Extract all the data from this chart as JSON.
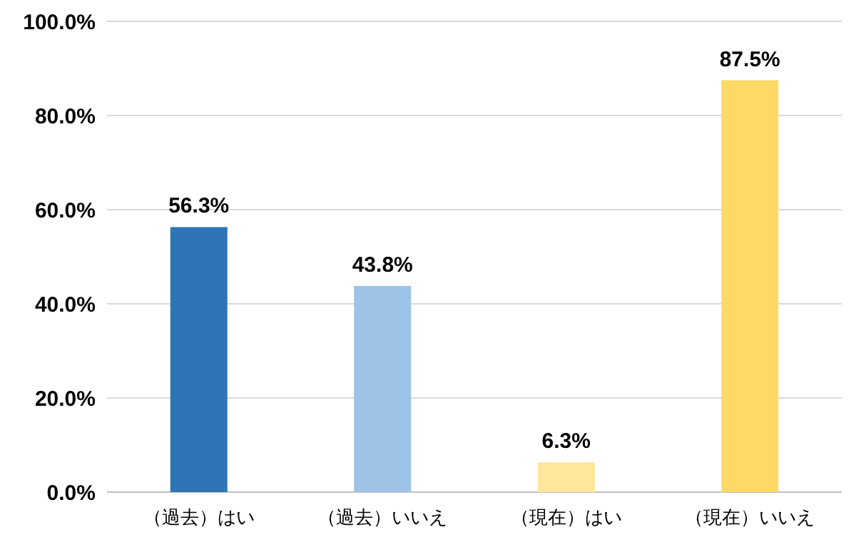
{
  "chart_data": {
    "type": "bar",
    "categories": [
      "（過去）はい",
      "（過去）いいえ",
      "（現在）はい",
      "（現在）いいえ"
    ],
    "values": [
      56.3,
      43.8,
      6.3,
      87.5
    ],
    "colors": [
      "#2e75b6",
      "#9dc3e6",
      "#ffe699",
      "#ffd966"
    ],
    "value_labels": [
      "56.3%",
      "43.8%",
      "6.3%",
      "87.5%"
    ],
    "ylim": [
      0,
      100
    ],
    "yticks": [
      {
        "value": 0,
        "label": "0.0%"
      },
      {
        "value": 20,
        "label": "20.0%"
      },
      {
        "value": 40,
        "label": "40.0%"
      },
      {
        "value": 60,
        "label": "60.0%"
      },
      {
        "value": 80,
        "label": "80.0%"
      },
      {
        "value": 100,
        "label": "100.0%"
      }
    ],
    "grid": "y"
  }
}
